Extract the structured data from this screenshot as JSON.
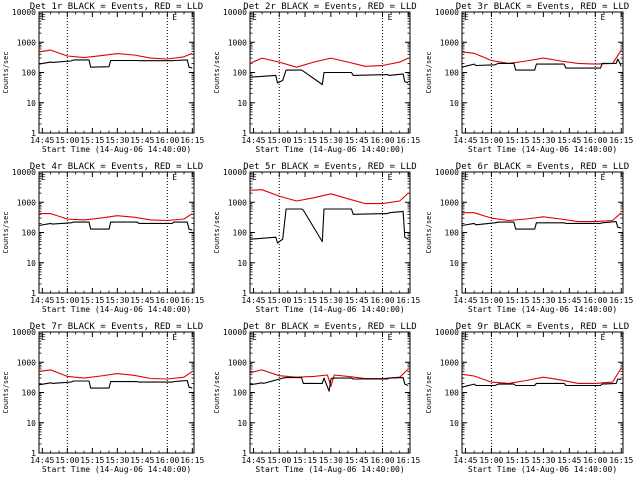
{
  "figure": {
    "x_label": "Start Time (14-Aug-06 14:40:00)",
    "y_label": "Counts/sec",
    "x_ticks": [
      "14:45",
      "15:00",
      "15:15",
      "15:30",
      "15:45",
      "16:00",
      "16:15"
    ],
    "y_ticks": [
      "1",
      "10",
      "100",
      "1000",
      "10000"
    ],
    "colors": {
      "events": "#000000",
      "lld": "#e00000",
      "marks": "#000000"
    }
  },
  "chart_data": [
    {
      "type": "line",
      "title": "Det 1r  BLACK = Events, RED = LLD",
      "xlim": [
        "14:43",
        "16:16"
      ],
      "ylim": [
        1,
        10000
      ],
      "yscale": "log",
      "flag_glyphs": [
        "E",
        "E"
      ],
      "vlines": [
        "15:00",
        "16:00"
      ],
      "series": [
        {
          "name": "Events",
          "x": [
            "14:43",
            "14:50",
            "14:51",
            "15:02",
            "15:04",
            "15:13",
            "15:14",
            "15:25",
            "15:26",
            "15:42",
            "15:43",
            "16:03",
            "16:04",
            "16:12",
            "16:13",
            "16:15"
          ],
          "values": [
            190,
            220,
            215,
            240,
            260,
            260,
            150,
            155,
            250,
            250,
            245,
            245,
            250,
            260,
            150,
            140
          ]
        },
        {
          "name": "LLD",
          "x": [
            "14:43",
            "14:50",
            "15:00",
            "15:10",
            "15:20",
            "15:30",
            "15:40",
            "15:50",
            "16:00",
            "16:10",
            "16:15"
          ],
          "values": [
            480,
            550,
            350,
            310,
            360,
            420,
            380,
            300,
            280,
            330,
            430
          ]
        }
      ]
    },
    {
      "type": "line",
      "title": "Det 2r  BLACK = Events, RED = LLD",
      "xlim": [
        "14:43",
        "16:16"
      ],
      "ylim": [
        1,
        10000
      ],
      "yscale": "log",
      "flag_glyphs": [
        "E",
        "E"
      ],
      "vlines": [
        "15:00",
        "16:00"
      ],
      "series": [
        {
          "name": "Events",
          "x": [
            "14:43",
            "14:58",
            "14:59",
            "15:02",
            "15:04",
            "15:13",
            "15:14",
            "15:25",
            "15:26",
            "15:42",
            "15:43",
            "16:03",
            "16:04",
            "16:12",
            "16:13",
            "16:15"
          ],
          "values": [
            70,
            80,
            45,
            55,
            120,
            120,
            110,
            40,
            100,
            100,
            80,
            85,
            80,
            90,
            50,
            45
          ]
        },
        {
          "name": "LLD",
          "x": [
            "14:43",
            "14:50",
            "15:00",
            "15:10",
            "15:20",
            "15:30",
            "15:40",
            "15:50",
            "16:00",
            "16:10",
            "16:15"
          ],
          "values": [
            200,
            300,
            220,
            150,
            220,
            300,
            220,
            160,
            170,
            220,
            300
          ]
        }
      ]
    },
    {
      "type": "line",
      "title": "Det 3r  BLACK = Events, RED = LLD",
      "xlim": [
        "14:43",
        "16:16"
      ],
      "ylim": [
        1,
        10000
      ],
      "yscale": "log",
      "flag_glyphs": [
        "E",
        "E"
      ],
      "vlines": [
        "15:00",
        "16:00"
      ],
      "series": [
        {
          "name": "Events",
          "x": [
            "14:43",
            "14:50",
            "14:51",
            "15:02",
            "15:04",
            "15:13",
            "15:14",
            "15:25",
            "15:26",
            "15:42",
            "15:43",
            "16:03",
            "16:04",
            "16:12",
            "16:13",
            "16:15"
          ],
          "values": [
            150,
            190,
            170,
            180,
            200,
            200,
            120,
            120,
            190,
            190,
            140,
            140,
            200,
            200,
            280,
            160
          ]
        },
        {
          "name": "LLD",
          "x": [
            "14:43",
            "14:50",
            "15:00",
            "15:10",
            "15:20",
            "15:30",
            "15:40",
            "15:50",
            "16:00",
            "16:10",
            "16:15"
          ],
          "values": [
            480,
            430,
            250,
            200,
            240,
            300,
            240,
            200,
            190,
            200,
            550
          ]
        }
      ]
    },
    {
      "type": "line",
      "title": "Det 4r  BLACK = Events, RED = LLD",
      "xlim": [
        "14:43",
        "16:16"
      ],
      "ylim": [
        1,
        10000
      ],
      "yscale": "log",
      "flag_glyphs": [
        "E",
        "E"
      ],
      "vlines": [
        "15:00",
        "16:00"
      ],
      "series": [
        {
          "name": "Events",
          "x": [
            "14:43",
            "14:50",
            "14:51",
            "15:02",
            "15:04",
            "15:13",
            "15:14",
            "15:25",
            "15:26",
            "15:42",
            "15:43",
            "16:03",
            "16:04",
            "16:12",
            "16:13",
            "16:15"
          ],
          "values": [
            170,
            200,
            190,
            210,
            220,
            220,
            130,
            130,
            220,
            220,
            200,
            200,
            220,
            220,
            130,
            120
          ]
        },
        {
          "name": "LLD",
          "x": [
            "14:43",
            "14:50",
            "15:00",
            "15:10",
            "15:20",
            "15:30",
            "15:40",
            "15:50",
            "16:00",
            "16:10",
            "16:15"
          ],
          "values": [
            420,
            420,
            280,
            260,
            300,
            360,
            320,
            260,
            250,
            280,
            420
          ]
        }
      ]
    },
    {
      "type": "line",
      "title": "Det 5r  BLACK = Events, RED = LLD",
      "xlim": [
        "14:43",
        "16:16"
      ],
      "ylim": [
        1,
        10000
      ],
      "yscale": "log",
      "flag_glyphs": [
        "E",
        "E"
      ],
      "vlines": [
        "15:00",
        "16:00"
      ],
      "series": [
        {
          "name": "Events",
          "x": [
            "14:43",
            "14:58",
            "14:59",
            "15:02",
            "15:04",
            "15:13",
            "15:14",
            "15:25",
            "15:26",
            "15:42",
            "15:43",
            "16:03",
            "16:04",
            "16:12",
            "16:13",
            "16:15"
          ],
          "values": [
            60,
            70,
            45,
            60,
            600,
            600,
            550,
            50,
            600,
            600,
            400,
            420,
            450,
            500,
            70,
            60
          ]
        },
        {
          "name": "LLD",
          "x": [
            "14:43",
            "14:50",
            "15:00",
            "15:10",
            "15:20",
            "15:30",
            "15:40",
            "15:50",
            "16:00",
            "16:10",
            "16:15"
          ],
          "values": [
            2500,
            2600,
            1600,
            1100,
            1400,
            1900,
            1300,
            900,
            900,
            1100,
            2000
          ]
        }
      ]
    },
    {
      "type": "line",
      "title": "Det 6r  BLACK = Events, RED = LLD",
      "xlim": [
        "14:43",
        "16:16"
      ],
      "ylim": [
        1,
        10000
      ],
      "yscale": "log",
      "flag_glyphs": [
        "E",
        "E"
      ],
      "vlines": [
        "15:00",
        "16:00"
      ],
      "series": [
        {
          "name": "Events",
          "x": [
            "14:43",
            "14:50",
            "14:51",
            "15:02",
            "15:04",
            "15:13",
            "15:14",
            "15:25",
            "15:26",
            "15:42",
            "15:43",
            "16:03",
            "16:04",
            "16:12",
            "16:13",
            "16:15"
          ],
          "values": [
            170,
            200,
            180,
            210,
            220,
            220,
            130,
            130,
            210,
            210,
            200,
            200,
            210,
            230,
            150,
            140
          ]
        },
        {
          "name": "LLD",
          "x": [
            "14:43",
            "14:50",
            "15:00",
            "15:10",
            "15:20",
            "15:30",
            "15:40",
            "15:50",
            "16:00",
            "16:10",
            "16:15"
          ],
          "values": [
            450,
            450,
            300,
            250,
            280,
            330,
            280,
            230,
            230,
            250,
            450
          ]
        }
      ]
    },
    {
      "type": "line",
      "title": "Det 7r  BLACK = Events, RED = LLD",
      "xlim": [
        "14:43",
        "16:16"
      ],
      "ylim": [
        1,
        10000
      ],
      "yscale": "log",
      "flag_glyphs": [
        "E",
        "E"
      ],
      "vlines": [
        "15:00",
        "16:00"
      ],
      "series": [
        {
          "name": "Events",
          "x": [
            "14:43",
            "14:50",
            "14:51",
            "15:02",
            "15:04",
            "15:13",
            "15:14",
            "15:25",
            "15:26",
            "15:42",
            "15:43",
            "16:03",
            "16:04",
            "16:12",
            "16:13",
            "16:15"
          ],
          "values": [
            180,
            210,
            200,
            220,
            240,
            240,
            140,
            140,
            230,
            230,
            220,
            220,
            230,
            250,
            150,
            140
          ]
        },
        {
          "name": "LLD",
          "x": [
            "14:43",
            "14:50",
            "15:00",
            "15:10",
            "15:20",
            "15:30",
            "15:40",
            "15:50",
            "16:00",
            "16:10",
            "16:15"
          ],
          "values": [
            500,
            560,
            340,
            300,
            350,
            420,
            370,
            290,
            280,
            320,
            500
          ]
        }
      ]
    },
    {
      "type": "line",
      "title": "Det 8r  BLACK = Events, RED = LLD",
      "xlim": [
        "14:43",
        "16:16"
      ],
      "ylim": [
        1,
        10000
      ],
      "yscale": "log",
      "flag_glyphs": [
        "E",
        "E"
      ],
      "vlines": [
        "15:00",
        "16:00"
      ],
      "series": [
        {
          "name": "Events",
          "x": [
            "14:43",
            "14:50",
            "14:51",
            "15:02",
            "15:04",
            "15:13",
            "15:14",
            "15:25",
            "15:26",
            "15:29",
            "15:30",
            "15:31",
            "15:42",
            "15:43",
            "16:03",
            "16:04",
            "16:12",
            "16:13",
            "16:15"
          ],
          "values": [
            180,
            210,
            200,
            300,
            310,
            310,
            200,
            200,
            300,
            110,
            280,
            300,
            300,
            280,
            280,
            300,
            310,
            190,
            170
          ]
        },
        {
          "name": "LLD",
          "x": [
            "14:43",
            "14:50",
            "15:00",
            "15:10",
            "15:20",
            "15:28",
            "15:30",
            "15:32",
            "15:40",
            "15:50",
            "16:00",
            "16:10",
            "16:15"
          ],
          "values": [
            450,
            560,
            360,
            320,
            340,
            380,
            160,
            380,
            340,
            290,
            290,
            320,
            600
          ]
        }
      ]
    },
    {
      "type": "line",
      "title": "Det 9r  BLACK = Events, RED = LLD",
      "xlim": [
        "14:43",
        "16:16"
      ],
      "ylim": [
        1,
        10000
      ],
      "yscale": "log",
      "flag_glyphs": [
        "E",
        "E"
      ],
      "vlines": [
        "15:00",
        "16:00"
      ],
      "series": [
        {
          "name": "Events",
          "x": [
            "14:43",
            "14:50",
            "14:51",
            "15:02",
            "15:04",
            "15:13",
            "15:14",
            "15:25",
            "15:26",
            "15:42",
            "15:43",
            "16:03",
            "16:04",
            "16:12",
            "16:13",
            "16:15"
          ],
          "values": [
            150,
            190,
            170,
            170,
            190,
            190,
            170,
            170,
            200,
            200,
            170,
            170,
            190,
            200,
            280,
            270
          ]
        },
        {
          "name": "LLD",
          "x": [
            "14:43",
            "14:50",
            "15:00",
            "15:10",
            "15:20",
            "15:30",
            "15:40",
            "15:50",
            "16:00",
            "16:10",
            "16:15"
          ],
          "values": [
            400,
            350,
            220,
            200,
            250,
            320,
            260,
            200,
            200,
            220,
            650
          ]
        }
      ]
    }
  ]
}
